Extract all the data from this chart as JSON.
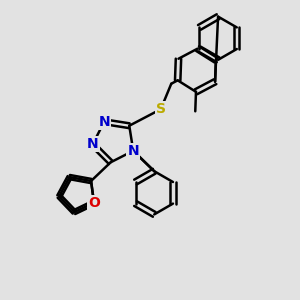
{
  "background_color": "#e2e2e2",
  "bond_color": "#000000",
  "n_color": "#0000cc",
  "o_color": "#dd0000",
  "s_color": "#bbaa00",
  "bond_width": 1.8,
  "dbo": 0.09,
  "font_size_atom": 10,
  "fig_width": 3.0,
  "fig_height": 3.0,
  "dpi": 100,
  "xlim": [
    0,
    10
  ],
  "ylim": [
    0,
    10
  ]
}
